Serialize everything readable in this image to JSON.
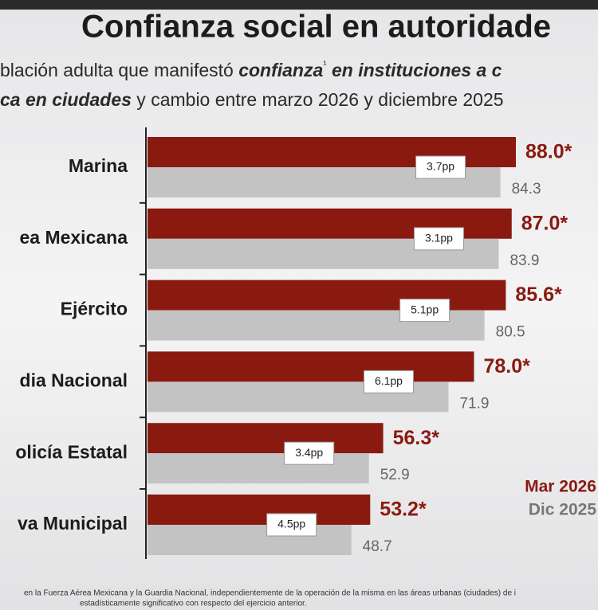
{
  "chart_data": {
    "type": "bar",
    "title": "Confianza social en autoridade",
    "subtitle_line1": [
      "blación adulta que manifestó ",
      "confianza",
      "¹",
      " en instituciones a c"
    ],
    "subtitle_line2": [
      "ca en ciudades",
      " y cambio entre marzo 2026 y diciembre 2025"
    ],
    "categories": [
      "Marina",
      "ea Mexicana",
      "Ejército",
      "dia Nacional",
      "olicía Estatal",
      "va Municipal"
    ],
    "series": [
      {
        "name": "Mar 2026",
        "color": "#8a1a10",
        "values": [
          88.0,
          87.0,
          85.6,
          78.0,
          56.3,
          53.2
        ],
        "value_labels": [
          "88.0*",
          "87.0*",
          "85.6*",
          "78.0*",
          "56.3*",
          "53.2*"
        ]
      },
      {
        "name": "Dic 2025",
        "color": "#c3c3c3",
        "values": [
          84.3,
          83.9,
          80.5,
          71.9,
          52.9,
          48.7
        ]
      }
    ],
    "annotations": [
      "3.7pp",
      "3.1pp",
      "5.1pp",
      "6.1pp",
      "3.4pp",
      "4.5pp"
    ],
    "xlim": [
      0,
      100
    ],
    "footnotes": [
      "en la Fuerza Aérea Mexicana y la Guardia Nacional, independientemente de la operación de la misma en las áreas urbanas (ciudades) de i",
      "estadísticamente significativo con respecto del ejercicio anterior."
    ]
  }
}
